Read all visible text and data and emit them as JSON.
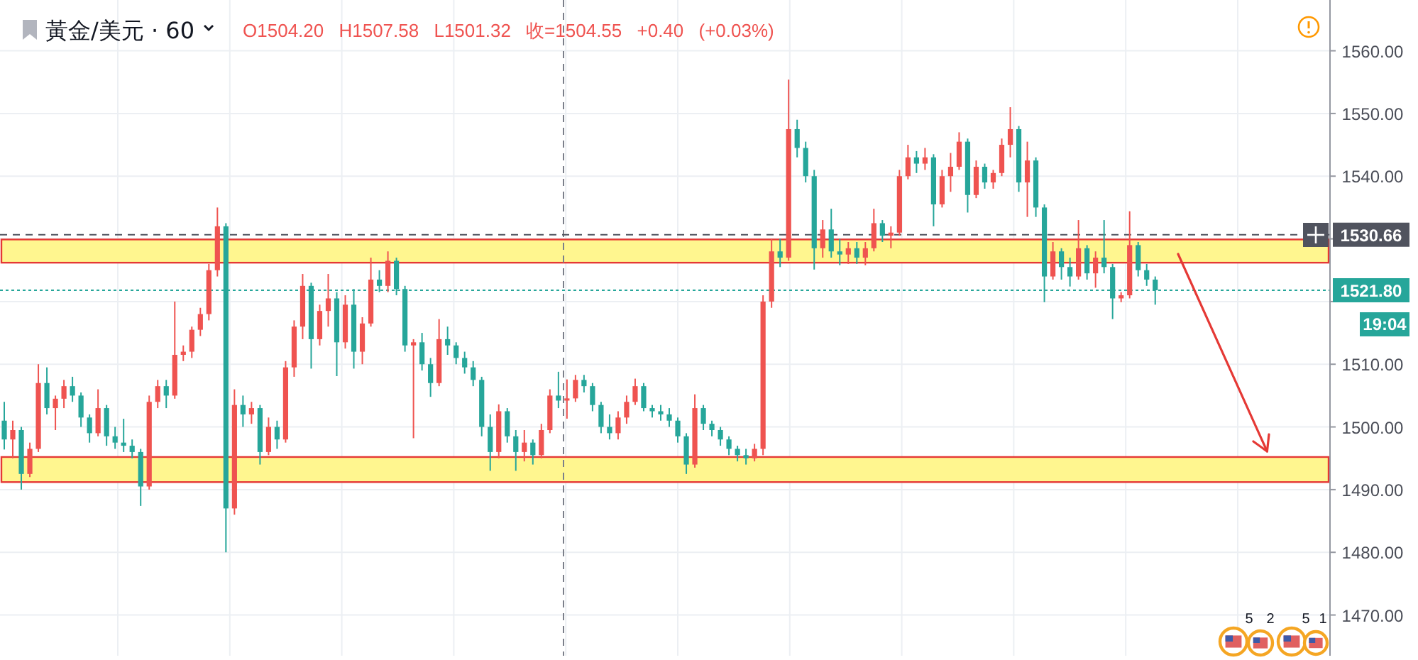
{
  "chart_data": {
    "type": "candlestick",
    "title": "黃金/美元 · 60",
    "subtitle": "O1504.20 H1507.58 L1501.32 收=1504.55 +0.40 (+0.03%)",
    "categories": [
      null,
      null,
      null,
      null,
      null,
      null,
      null,
      null,
      null,
      null,
      null,
      null,
      null,
      null,
      null,
      null,
      null,
      null,
      null,
      null,
      null,
      null,
      null,
      null,
      null,
      null,
      null,
      null,
      null,
      null,
      null,
      null,
      null,
      null,
      null,
      null,
      null,
      null,
      null,
      null,
      null,
      null,
      null,
      null,
      null,
      null,
      null,
      null,
      null,
      null,
      null,
      null,
      null,
      null,
      null,
      null,
      null,
      null,
      null,
      null,
      null,
      null,
      null,
      null,
      null,
      null,
      null,
      null,
      null,
      null,
      null,
      null,
      null,
      null,
      null,
      null,
      null,
      null,
      null,
      null,
      null,
      null,
      null,
      null,
      null,
      null,
      null,
      null,
      null,
      null,
      null,
      null,
      null,
      null,
      null,
      null,
      null,
      null,
      null,
      null,
      null,
      null,
      null,
      null,
      null,
      null,
      null,
      null,
      null,
      null,
      null,
      null,
      null,
      null,
      null,
      null,
      null,
      null,
      null,
      null,
      null,
      null,
      null,
      null,
      null,
      null,
      null,
      null,
      null,
      null,
      null,
      null,
      null,
      null,
      null,
      null,
      null,
      null,
      null,
      null,
      null,
      null,
      null,
      null,
      null,
      null,
      null,
      null,
      null,
      null,
      null,
      null,
      null,
      null,
      null,
      null
    ],
    "ohlc": [
      [
        1501,
        1504,
        1496.4,
        1498
      ],
      [
        1498,
        1501,
        1495,
        1499.5
      ],
      [
        1499.5,
        1500,
        1490,
        1492.5
      ],
      [
        1492.5,
        1497.5,
        1492,
        1496.5
      ],
      [
        1496.5,
        1510,
        1496,
        1507
      ],
      [
        1507,
        1509.5,
        1502,
        1503
      ],
      [
        1503,
        1505,
        1499.5,
        1504.5
      ],
      [
        1504.5,
        1507.5,
        1503,
        1506.5
      ],
      [
        1506.5,
        1508,
        1504,
        1505
      ],
      [
        1505,
        1505.5,
        1500,
        1501.5
      ],
      [
        1501.5,
        1502,
        1497.5,
        1499
      ],
      [
        1499,
        1506,
        1498.5,
        1503
      ],
      [
        1503,
        1503.5,
        1497,
        1498.5
      ],
      [
        1498.5,
        1500,
        1496.5,
        1497.5
      ],
      [
        1497.5,
        1501.3,
        1496,
        1497
      ],
      [
        1497,
        1498,
        1495,
        1496
      ],
      [
        1496,
        1496.5,
        1487.4,
        1490.5
      ],
      [
        1490.5,
        1505,
        1490,
        1504
      ],
      [
        1504,
        1507.5,
        1503,
        1506.5
      ],
      [
        1506.5,
        1507.5,
        1503,
        1505
      ],
      [
        1505,
        1520,
        1504.5,
        1511.5
      ],
      [
        1511.5,
        1513,
        1510.5,
        1512
      ],
      [
        1512,
        1516,
        1511,
        1515.5
      ],
      [
        1515.5,
        1519,
        1514.5,
        1518
      ],
      [
        1518,
        1526,
        1517,
        1525
      ],
      [
        1525,
        1535,
        1524,
        1532
      ],
      [
        1532,
        1532.5,
        1480,
        1487
      ],
      [
        1487,
        1506,
        1486,
        1503.5
      ],
      [
        1503.5,
        1505,
        1500,
        1502
      ],
      [
        1502,
        1504,
        1500.5,
        1503
      ],
      [
        1503,
        1503.5,
        1494,
        1496
      ],
      [
        1496,
        1501.5,
        1495.5,
        1500
      ],
      [
        1500,
        1501,
        1496.5,
        1498
      ],
      [
        1498,
        1510.5,
        1497.5,
        1509.5
      ],
      [
        1509.5,
        1517,
        1508,
        1516
      ],
      [
        1516,
        1524.4,
        1514,
        1522.5
      ],
      [
        1522.5,
        1523,
        1509.3,
        1514
      ],
      [
        1514,
        1519.5,
        1513,
        1518.5
      ],
      [
        1518.5,
        1524.4,
        1516,
        1520.5
      ],
      [
        1520.5,
        1521.5,
        1508.1,
        1513.5
      ],
      [
        1513.5,
        1521,
        1512.5,
        1519.5
      ],
      [
        1519.5,
        1522,
        1509.3,
        1512
      ],
      [
        1512,
        1517.5,
        1510,
        1516.5
      ],
      [
        1516.5,
        1527,
        1516,
        1523.5
      ],
      [
        1523.5,
        1525,
        1521.5,
        1522.5
      ],
      [
        1522.5,
        1528,
        1521.5,
        1526.5
      ],
      [
        1526.5,
        1527,
        1521,
        1522
      ],
      [
        1522,
        1522.5,
        1512,
        1513
      ],
      [
        1513,
        1514,
        1498.2,
        1513.5
      ],
      [
        1513.5,
        1515,
        1509,
        1510
      ],
      [
        1510,
        1511,
        1504.8,
        1507
      ],
      [
        1507,
        1517.2,
        1506.5,
        1514
      ],
      [
        1514,
        1516,
        1511.5,
        1513
      ],
      [
        1513,
        1513.5,
        1510,
        1511
      ],
      [
        1511,
        1512,
        1508.5,
        1509.5
      ],
      [
        1509.5,
        1510.5,
        1506.5,
        1507.5
      ],
      [
        1507.5,
        1508,
        1498.5,
        1500
      ],
      [
        1500,
        1502,
        1493,
        1496
      ],
      [
        1496,
        1503.6,
        1495,
        1502.5
      ],
      [
        1502.5,
        1503,
        1497.5,
        1498.5
      ],
      [
        1498.5,
        1499.5,
        1493,
        1496
      ],
      [
        1496,
        1499.5,
        1494.5,
        1497.5
      ],
      [
        1497.5,
        1498,
        1494,
        1495.5
      ],
      [
        1495.5,
        1500.5,
        1495,
        1499.5
      ],
      [
        1499.5,
        1506,
        1499,
        1505
      ],
      [
        1505,
        1508.8,
        1503,
        1504.2
      ],
      [
        1504.2,
        1507.58,
        1501.32,
        1504.55
      ],
      [
        1504.55,
        1508.3,
        1504,
        1507.5
      ],
      [
        1507.5,
        1508.3,
        1505.5,
        1506.5
      ],
      [
        1506.5,
        1507,
        1502.5,
        1503.5
      ],
      [
        1503.5,
        1504,
        1499,
        1500
      ],
      [
        1500,
        1502,
        1498,
        1499
      ],
      [
        1499,
        1502.5,
        1498,
        1501.5
      ],
      [
        1501.5,
        1505,
        1500.5,
        1504
      ],
      [
        1504,
        1507.7,
        1503.5,
        1506.5
      ],
      [
        1506.5,
        1507,
        1502.5,
        1503
      ],
      [
        1503,
        1503.5,
        1501.5,
        1502.5
      ],
      [
        1502.5,
        1503.5,
        1501,
        1502
      ],
      [
        1502,
        1503,
        1500,
        1501
      ],
      [
        1501,
        1501.5,
        1497.5,
        1498.5
      ],
      [
        1498.5,
        1499,
        1492.5,
        1494
      ],
      [
        1494,
        1505.2,
        1493.5,
        1503
      ],
      [
        1503,
        1503.5,
        1499.5,
        1500.5
      ],
      [
        1500.5,
        1501,
        1498.5,
        1499.5
      ],
      [
        1499.5,
        1500,
        1497,
        1498
      ],
      [
        1498,
        1498.5,
        1495.5,
        1496.5
      ],
      [
        1496.5,
        1497,
        1494.5,
        1495.5
      ],
      [
        1495.5,
        1496.5,
        1494,
        1495
      ],
      [
        1495,
        1497.3,
        1494.5,
        1496.5
      ],
      [
        1496.5,
        1521,
        1495.5,
        1520
      ],
      [
        1520,
        1530,
        1519,
        1528
      ],
      [
        1528,
        1530,
        1525.5,
        1527
      ],
      [
        1527,
        1555.4,
        1526.5,
        1547.5
      ],
      [
        1547.5,
        1549,
        1543,
        1544.5
      ],
      [
        1544.5,
        1545.5,
        1539,
        1540
      ],
      [
        1540,
        1541,
        1525.1,
        1528.5
      ],
      [
        1528.5,
        1533,
        1527,
        1531.5
      ],
      [
        1531.5,
        1534.8,
        1527,
        1528
      ],
      [
        1528,
        1530,
        1525.8,
        1527.5
      ],
      [
        1527.5,
        1529.5,
        1526,
        1528.5
      ],
      [
        1528.5,
        1529.5,
        1526,
        1527
      ],
      [
        1527,
        1529.5,
        1525.8,
        1528.5
      ],
      [
        1528.5,
        1534.8,
        1528,
        1532.5
      ],
      [
        1532.5,
        1533,
        1529.5,
        1530.5
      ],
      [
        1530.5,
        1532,
        1528.5,
        1531
      ],
      [
        1531,
        1541,
        1530.5,
        1540
      ],
      [
        1540,
        1545,
        1539.5,
        1543
      ],
      [
        1543,
        1544,
        1540.5,
        1542
      ],
      [
        1542,
        1544.5,
        1541,
        1543
      ],
      [
        1543,
        1543.5,
        1532,
        1535.5
      ],
      [
        1535.5,
        1541,
        1535,
        1540
      ],
      [
        1540,
        1543.7,
        1537.5,
        1541.5
      ],
      [
        1541.5,
        1547,
        1541,
        1545.5
      ],
      [
        1545.5,
        1546,
        1534.2,
        1537
      ],
      [
        1537,
        1542.5,
        1536.5,
        1541.5
      ],
      [
        1541.5,
        1542,
        1538,
        1539
      ],
      [
        1539,
        1541,
        1538,
        1540.5
      ],
      [
        1540.5,
        1546,
        1540,
        1545
      ],
      [
        1545,
        1551,
        1543,
        1547.5
      ],
      [
        1547.5,
        1548,
        1537.5,
        1539
      ],
      [
        1539,
        1545.5,
        1533.5,
        1542.5
      ],
      [
        1542.5,
        1543,
        1533.5,
        1535
      ],
      [
        1535,
        1535.5,
        1519.9,
        1524
      ],
      [
        1524,
        1529.5,
        1523.5,
        1528
      ],
      [
        1528,
        1528.5,
        1523.5,
        1525.5
      ],
      [
        1525.5,
        1527,
        1522.4,
        1524
      ],
      [
        1524,
        1533,
        1523.5,
        1528.5
      ],
      [
        1528.5,
        1529,
        1523.5,
        1524.5
      ],
      [
        1524.5,
        1528,
        1522.2,
        1527
      ],
      [
        1527,
        1533,
        1524.5,
        1525.5
      ],
      [
        1525.5,
        1526,
        1517.2,
        1520.5
      ],
      [
        1520.5,
        1521.5,
        1519.9,
        1521
      ],
      [
        1521,
        1534.4,
        1520.5,
        1529
      ],
      [
        1529,
        1529.5,
        1524,
        1525
      ],
      [
        1525,
        1526,
        1522.5,
        1523.5
      ],
      [
        1523.5,
        1524,
        1519.5,
        1521.8
      ],
      null,
      null,
      null,
      null,
      null,
      null,
      null,
      null,
      null,
      null,
      null,
      null,
      null,
      null,
      null,
      null,
      null,
      null,
      null,
      null
    ],
    "colors": [
      "#26a69a",
      "#ef5350",
      "#26a69a",
      "#ef5350",
      "#ef5350",
      "#26a69a",
      "#ef5350",
      "#ef5350",
      "#26a69a",
      "#26a69a",
      "#26a69a",
      "#ef5350",
      "#26a69a",
      "#26a69a",
      "#26a69a",
      "#26a69a",
      "#26a69a",
      "#ef5350",
      "#ef5350",
      "#26a69a",
      "#ef5350",
      "#ef5350",
      "#ef5350",
      "#ef5350",
      "#ef5350",
      "#ef5350",
      "#26a69a",
      "#ef5350",
      "#26a69a",
      "#ef5350",
      "#26a69a",
      "#ef5350",
      "#26a69a",
      "#ef5350",
      "#ef5350",
      "#ef5350",
      "#26a69a",
      "#ef5350",
      "#ef5350",
      "#26a69a",
      "#ef5350",
      "#26a69a",
      "#ef5350",
      "#ef5350",
      "#26a69a",
      "#ef5350",
      "#26a69a",
      "#26a69a",
      "#ef5350",
      "#26a69a",
      "#26a69a",
      "#ef5350",
      "#26a69a",
      "#26a69a",
      "#26a69a",
      "#26a69a",
      "#26a69a",
      "#26a69a",
      "#ef5350",
      "#26a69a",
      "#26a69a",
      "#ef5350",
      "#26a69a",
      "#ef5350",
      "#ef5350",
      "#26a69a",
      "#ef5350",
      "#ef5350",
      "#26a69a",
      "#26a69a",
      "#26a69a",
      "#26a69a",
      "#ef5350",
      "#ef5350",
      "#ef5350",
      "#26a69a",
      "#26a69a",
      "#26a69a",
      "#26a69a",
      "#26a69a",
      "#26a69a",
      "#ef5350",
      "#26a69a",
      "#26a69a",
      "#26a69a",
      "#26a69a",
      "#26a69a",
      "#26a69a",
      "#ef5350",
      "#ef5350",
      "#ef5350",
      "#26a69a",
      "#ef5350",
      "#26a69a",
      "#26a69a",
      "#26a69a",
      "#ef5350",
      "#26a69a",
      "#26a69a",
      "#ef5350",
      "#26a69a",
      "#ef5350",
      "#ef5350",
      "#26a69a",
      "#ef5350",
      "#ef5350",
      "#ef5350",
      "#26a69a",
      "#ef5350",
      "#26a69a",
      "#ef5350",
      "#ef5350",
      "#ef5350",
      "#26a69a",
      "#ef5350",
      "#26a69a",
      "#ef5350",
      "#ef5350",
      "#ef5350",
      "#26a69a",
      "#ef5350",
      "#26a69a",
      "#26a69a",
      "#ef5350",
      "#26a69a",
      "#26a69a",
      "#ef5350",
      "#26a69a",
      "#ef5350",
      "#26a69a",
      "#26a69a",
      "#ef5350",
      "#ef5350",
      "#26a69a",
      "#26a69a",
      "#26a69a",
      null,
      null,
      null,
      null,
      null,
      null,
      null,
      null,
      null,
      null,
      null,
      null,
      null,
      null,
      null,
      null,
      null,
      null,
      null,
      null
    ],
    "ylim": [
      1463.5,
      1568.1
    ],
    "yticks": [
      {
        "value": 1470,
        "label": "1470.00"
      },
      {
        "value": 1480,
        "label": "1480.00"
      },
      {
        "value": 1490,
        "label": "1490.00"
      },
      {
        "value": 1500,
        "label": "1500.00"
      },
      {
        "value": 1510,
        "label": "1510.00"
      },
      {
        "value": 1520,
        "label": null
      },
      {
        "value": 1530,
        "label": null
      },
      {
        "value": 1540,
        "label": "1540.00"
      },
      {
        "value": 1550,
        "label": "1550.00"
      },
      {
        "value": 1560,
        "label": "1560.00"
      }
    ],
    "grid": true,
    "tick_labels": "y",
    "bands": [
      {
        "axis": "y",
        "from": 1491.2,
        "to": 1495.2,
        "color": "#fff68f"
      },
      {
        "axis": "y",
        "from": 1526.2,
        "to": 1529.9,
        "color": "#fff68f"
      }
    ],
    "ref_lines": [
      {
        "axis": "y",
        "value": 1530.66,
        "label": "1530.66",
        "color": "#50535e",
        "line_style": "dashed"
      },
      {
        "axis": "y",
        "value": 1521.8,
        "label": "1521.80",
        "color": "#26a69a",
        "line_style": "dotted"
      }
    ],
    "annotations": [
      "19:04",
      "5",
      "2",
      "5",
      "1"
    ]
  }
}
